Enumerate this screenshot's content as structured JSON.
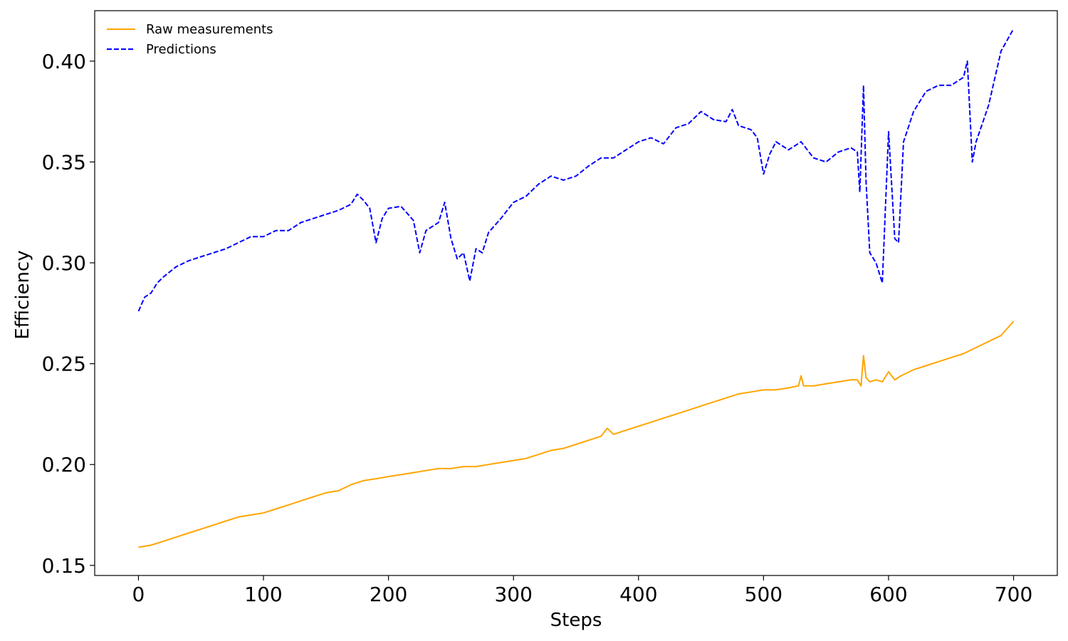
{
  "chart_data": {
    "type": "line",
    "title": "",
    "xlabel": "Steps",
    "ylabel": "Efficiency",
    "xlim": [
      -35,
      735
    ],
    "ylim": [
      0.145,
      0.425
    ],
    "xticks": [
      0,
      100,
      200,
      300,
      400,
      500,
      600,
      700
    ],
    "yticks": [
      0.15,
      0.2,
      0.25,
      0.3,
      0.35,
      0.4
    ],
    "ytick_labels": [
      "0.15",
      "0.20",
      "0.25",
      "0.30",
      "0.35",
      "0.40"
    ],
    "grid": false,
    "legend_position": "top-left",
    "series": [
      {
        "name": "Raw measurements",
        "color": "#FFA500",
        "style": "solid",
        "x": [
          0,
          10,
          20,
          30,
          40,
          50,
          60,
          70,
          80,
          90,
          100,
          110,
          120,
          130,
          140,
          150,
          160,
          170,
          180,
          190,
          200,
          210,
          220,
          230,
          240,
          250,
          260,
          270,
          280,
          290,
          300,
          310,
          320,
          330,
          340,
          350,
          360,
          370,
          375,
          380,
          390,
          400,
          410,
          420,
          430,
          440,
          450,
          460,
          470,
          480,
          490,
          500,
          510,
          520,
          528,
          530,
          532,
          540,
          550,
          560,
          570,
          575,
          578,
          580,
          582,
          585,
          590,
          595,
          600,
          605,
          610,
          620,
          630,
          640,
          650,
          660,
          670,
          680,
          690,
          700
        ],
        "values": [
          0.159,
          0.16,
          0.162,
          0.164,
          0.166,
          0.168,
          0.17,
          0.172,
          0.174,
          0.175,
          0.176,
          0.178,
          0.18,
          0.182,
          0.184,
          0.186,
          0.187,
          0.19,
          0.192,
          0.193,
          0.194,
          0.195,
          0.196,
          0.197,
          0.198,
          0.198,
          0.199,
          0.199,
          0.2,
          0.201,
          0.202,
          0.203,
          0.205,
          0.207,
          0.208,
          0.21,
          0.212,
          0.214,
          0.218,
          0.215,
          0.217,
          0.219,
          0.221,
          0.223,
          0.225,
          0.227,
          0.229,
          0.231,
          0.233,
          0.235,
          0.236,
          0.237,
          0.237,
          0.238,
          0.239,
          0.244,
          0.239,
          0.239,
          0.24,
          0.241,
          0.242,
          0.242,
          0.239,
          0.254,
          0.243,
          0.241,
          0.242,
          0.241,
          0.246,
          0.242,
          0.244,
          0.247,
          0.249,
          0.251,
          0.253,
          0.255,
          0.258,
          0.261,
          0.264,
          0.271
        ]
      },
      {
        "name": "Predictions",
        "color": "#0000FF",
        "style": "dashed",
        "x": [
          0,
          5,
          10,
          15,
          20,
          30,
          40,
          50,
          60,
          70,
          80,
          90,
          100,
          110,
          120,
          130,
          140,
          150,
          160,
          170,
          175,
          180,
          185,
          190,
          195,
          200,
          210,
          220,
          225,
          230,
          240,
          245,
          250,
          255,
          260,
          265,
          270,
          275,
          280,
          290,
          300,
          310,
          320,
          330,
          340,
          350,
          360,
          370,
          380,
          390,
          400,
          410,
          420,
          430,
          440,
          450,
          460,
          470,
          475,
          480,
          490,
          495,
          500,
          505,
          510,
          520,
          530,
          540,
          550,
          560,
          570,
          575,
          577,
          580,
          582,
          585,
          590,
          595,
          600,
          605,
          608,
          612,
          620,
          630,
          640,
          650,
          660,
          663,
          667,
          670,
          680,
          690,
          700
        ],
        "values": [
          0.276,
          0.283,
          0.285,
          0.29,
          0.293,
          0.298,
          0.301,
          0.303,
          0.305,
          0.307,
          0.31,
          0.313,
          0.313,
          0.316,
          0.316,
          0.32,
          0.322,
          0.324,
          0.326,
          0.329,
          0.334,
          0.331,
          0.327,
          0.31,
          0.322,
          0.327,
          0.328,
          0.321,
          0.305,
          0.316,
          0.32,
          0.33,
          0.312,
          0.302,
          0.305,
          0.291,
          0.307,
          0.305,
          0.315,
          0.322,
          0.33,
          0.333,
          0.339,
          0.343,
          0.341,
          0.343,
          0.348,
          0.352,
          0.352,
          0.356,
          0.36,
          0.362,
          0.359,
          0.367,
          0.369,
          0.375,
          0.371,
          0.37,
          0.376,
          0.368,
          0.366,
          0.362,
          0.344,
          0.354,
          0.36,
          0.356,
          0.36,
          0.352,
          0.35,
          0.355,
          0.357,
          0.355,
          0.335,
          0.388,
          0.34,
          0.305,
          0.3,
          0.29,
          0.365,
          0.312,
          0.31,
          0.36,
          0.375,
          0.385,
          0.388,
          0.388,
          0.392,
          0.4,
          0.35,
          0.36,
          0.378,
          0.405,
          0.416
        ]
      }
    ]
  }
}
